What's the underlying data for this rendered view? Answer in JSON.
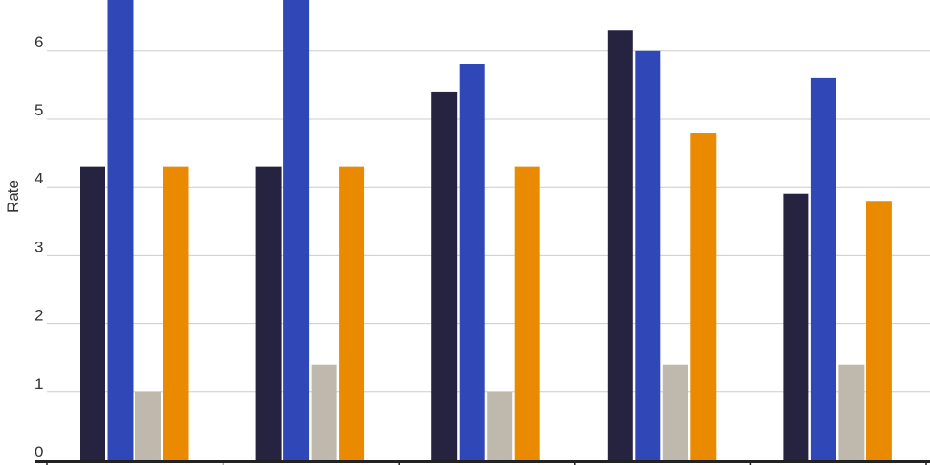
{
  "chart_data": {
    "type": "bar",
    "xlabel": "",
    "ylabel": "Rate",
    "categories": [
      "",
      "",
      "",
      "",
      ""
    ],
    "ylim": [
      0,
      6.6
    ],
    "yticks": [
      0,
      1,
      2,
      3,
      4,
      5,
      6
    ],
    "grid": true,
    "series": [
      {
        "color": "#262340",
        "values": [
          4.3,
          4.3,
          5.4,
          6.3,
          3.9
        ]
      },
      {
        "color": "#3047b8",
        "values": [
          6.8,
          6.8,
          5.8,
          6.0,
          5.6
        ]
      },
      {
        "color": "#bfb8ad",
        "values": [
          1.0,
          1.4,
          1.0,
          1.4,
          1.4
        ]
      },
      {
        "color": "#ea8a00",
        "values": [
          4.3,
          4.3,
          4.3,
          4.8,
          3.8
        ]
      }
    ]
  }
}
